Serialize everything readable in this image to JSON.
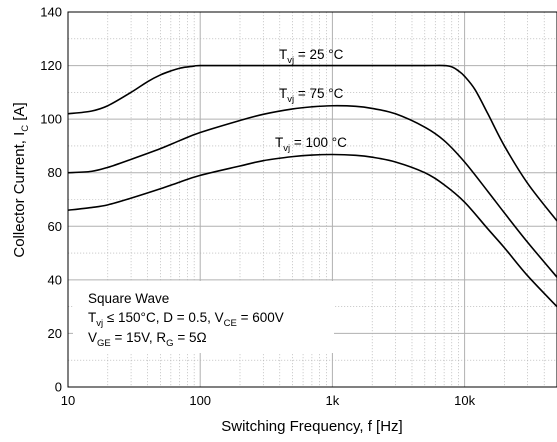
{
  "chart_data": {
    "type": "line",
    "xscale": "log",
    "xlim": [
      10,
      50000
    ],
    "ylim": [
      0,
      140
    ],
    "xlabel": "Switching Frequency, f [Hz]",
    "ylabel": {
      "main": "Collector Current, I",
      "sub": "C",
      "unit": " [A]"
    },
    "xticks": [
      {
        "value": 10,
        "label": "10"
      },
      {
        "value": 100,
        "label": "100"
      },
      {
        "value": 1000,
        "label": "1k"
      },
      {
        "value": 10000,
        "label": "10k"
      }
    ],
    "yticks": [
      {
        "value": 0,
        "label": "0"
      },
      {
        "value": 20,
        "label": "20"
      },
      {
        "value": 40,
        "label": "40"
      },
      {
        "value": 60,
        "label": "60"
      },
      {
        "value": 80,
        "label": "80"
      },
      {
        "value": 100,
        "label": "100"
      },
      {
        "value": 120,
        "label": "120"
      },
      {
        "value": 140,
        "label": "140"
      }
    ],
    "grid": true,
    "series": [
      {
        "label": {
          "main": "T",
          "sub": "vj",
          "rest": " = 25 °C"
        },
        "x": [
          10,
          15,
          20,
          30,
          40,
          50,
          60,
          70,
          80,
          90,
          100,
          200,
          500,
          1000,
          2000,
          5000,
          7000,
          8000,
          9000,
          10000,
          12000,
          15000,
          20000,
          30000,
          50000
        ],
        "y": [
          102,
          103,
          105,
          110,
          114,
          116.5,
          118,
          119,
          119.5,
          119.8,
          120,
          120,
          120,
          120,
          120,
          120,
          120,
          119.5,
          118,
          116,
          111,
          102,
          90,
          76,
          62
        ]
      },
      {
        "label": {
          "main": "T",
          "sub": "vj",
          "rest": " = 75 °C"
        },
        "x": [
          10,
          15,
          20,
          30,
          50,
          70,
          100,
          200,
          300,
          500,
          700,
          1000,
          1500,
          2000,
          3000,
          5000,
          7000,
          10000,
          15000,
          20000,
          30000,
          50000
        ],
        "y": [
          80,
          80.5,
          82,
          85,
          89,
          92,
          95,
          99.5,
          101.8,
          103.8,
          104.6,
          105,
          104.8,
          104,
          102,
          97,
          92,
          84,
          73,
          65,
          54,
          41
        ]
      },
      {
        "label": {
          "main": "T",
          "sub": "vj",
          "rest": " = 100 °C"
        },
        "x": [
          10,
          15,
          20,
          30,
          50,
          70,
          100,
          200,
          300,
          500,
          700,
          1000,
          1500,
          2000,
          3000,
          5000,
          7000,
          10000,
          15000,
          20000,
          30000,
          50000
        ],
        "y": [
          66,
          67,
          68,
          70.5,
          74,
          76.5,
          79,
          82.5,
          84.5,
          86,
          86.6,
          86.8,
          86.5,
          85.8,
          84,
          80,
          75.5,
          69,
          59,
          52,
          41.5,
          30
        ]
      }
    ],
    "annotation": {
      "line1": "Square Wave",
      "line2": {
        "t": "T",
        "t_sub": "vj",
        "mid": " ≤ 150°C, D = 0.5, V",
        "v_sub": "CE",
        "end": " = 600V"
      },
      "line3": {
        "v": "V",
        "v_sub": "GE",
        "mid": " = 15V, R",
        "r_sub": "G",
        "end": " = 5Ω"
      }
    },
    "colors": {
      "line": "#000000",
      "grid": "#b0b0b0",
      "axis": "#000000"
    }
  }
}
